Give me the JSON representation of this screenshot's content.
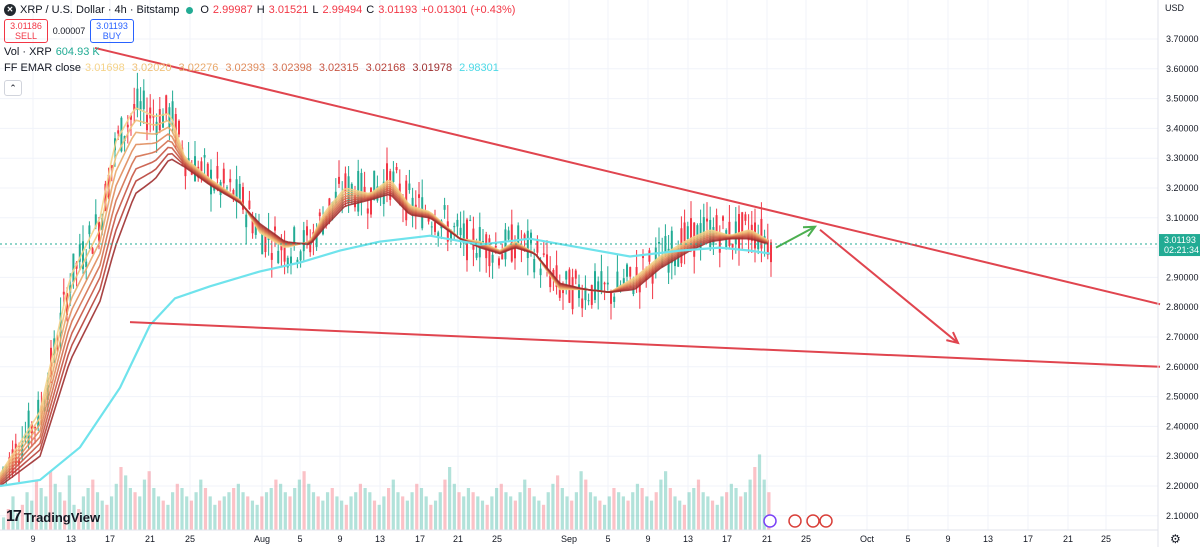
{
  "header": {
    "symbol_icon": "x-icon",
    "title": "XRP / U.S. Dollar · 4h · Bitstamp",
    "ohlc": [
      {
        "label": "O",
        "value": "2.99987"
      },
      {
        "label": "H",
        "value": "3.01521"
      },
      {
        "label": "L",
        "value": "2.99494"
      },
      {
        "label": "C",
        "value": "3.01193"
      }
    ],
    "change": "+0.01301 (+0.43%)",
    "sell_price": "3.01186",
    "sell_label": "SELL",
    "spread": "0.00007",
    "buy_price": "3.01193",
    "buy_label": "BUY",
    "volume_label": "Vol · XRP",
    "volume_value": "604.93 K",
    "ema_label": "FF EMAR close",
    "ema_values": [
      "3.01698",
      "3.02020",
      "3.02276",
      "3.02393",
      "3.02398",
      "3.02315",
      "3.02168",
      "3.01978",
      "2.98301"
    ],
    "ema_colors": [
      "#f5d38a",
      "#f0c27a",
      "#e9a86a",
      "#e08c5c",
      "#d4704f",
      "#c85644",
      "#b8423a",
      "#9e2f2f",
      "#4dd9e6"
    ],
    "collapse_icon": "chevron-up-icon"
  },
  "price_axis": {
    "currency": "USD",
    "labels": [
      "3.70000",
      "3.60000",
      "3.50000",
      "3.40000",
      "3.30000",
      "3.20000",
      "3.10000",
      "2.90000",
      "2.80000",
      "2.70000",
      "2.60000",
      "2.50000",
      "2.40000",
      "2.30000",
      "2.20000",
      "2.10000"
    ],
    "current_price": "3.01193",
    "countdown": "02:21:34"
  },
  "time_axis": {
    "labels": [
      "9",
      "13",
      "17",
      "21",
      "25",
      "Aug",
      "5",
      "9",
      "13",
      "17",
      "21",
      "25",
      "Sep",
      "5",
      "9",
      "13",
      "17",
      "21",
      "25",
      "Oct",
      "5",
      "9",
      "13",
      "17",
      "21",
      "25"
    ]
  },
  "logo_text": "TradingView",
  "colors": {
    "up": "#22ab94",
    "down": "#f23645",
    "trendline": "#e0454f",
    "arrow_down": "#e0454f",
    "arrow_up": "#4caf50",
    "long_ema": "#6fe3ec"
  },
  "chart_data": {
    "type": "line",
    "x_axis": "date (4h candles, Jul–Oct)",
    "ylim": [
      2.06,
      3.76
    ],
    "ema_fast": [
      [
        0,
        2.24
      ],
      [
        40,
        2.45
      ],
      [
        70,
        2.9
      ],
      [
        100,
        3.1
      ],
      [
        115,
        3.35
      ],
      [
        135,
        3.47
      ],
      [
        155,
        3.44
      ],
      [
        170,
        3.45
      ],
      [
        185,
        3.3
      ],
      [
        210,
        3.23
      ],
      [
        240,
        3.16
      ],
      [
        260,
        3.05
      ],
      [
        285,
        3.0
      ],
      [
        310,
        3.02
      ],
      [
        325,
        3.12
      ],
      [
        345,
        3.2
      ],
      [
        370,
        3.18
      ],
      [
        390,
        3.23
      ],
      [
        410,
        3.14
      ],
      [
        430,
        3.12
      ],
      [
        460,
        3.03
      ],
      [
        480,
        3.02
      ],
      [
        500,
        2.99
      ],
      [
        515,
        3.02
      ],
      [
        535,
        2.98
      ],
      [
        560,
        2.86
      ],
      [
        585,
        2.86
      ],
      [
        610,
        2.85
      ],
      [
        635,
        2.9
      ],
      [
        660,
        2.97
      ],
      [
        690,
        3.03
      ],
      [
        710,
        3.06
      ],
      [
        730,
        3.04
      ],
      [
        750,
        3.06
      ],
      [
        770,
        3.02
      ]
    ],
    "ema_slow": [
      [
        0,
        2.2
      ],
      [
        40,
        2.3
      ],
      [
        70,
        2.62
      ],
      [
        100,
        2.82
      ],
      [
        115,
        3.0
      ],
      [
        135,
        3.18
      ],
      [
        155,
        3.23
      ],
      [
        170,
        3.3
      ],
      [
        185,
        3.27
      ],
      [
        210,
        3.21
      ],
      [
        240,
        3.15
      ],
      [
        260,
        3.08
      ],
      [
        285,
        3.02
      ],
      [
        310,
        3.01
      ],
      [
        325,
        3.07
      ],
      [
        345,
        3.14
      ],
      [
        370,
        3.16
      ],
      [
        390,
        3.18
      ],
      [
        410,
        3.11
      ],
      [
        430,
        3.1
      ],
      [
        460,
        3.03
      ],
      [
        480,
        3.0
      ],
      [
        500,
        2.98
      ],
      [
        515,
        3.0
      ],
      [
        535,
        2.98
      ],
      [
        560,
        2.88
      ],
      [
        585,
        2.86
      ],
      [
        610,
        2.85
      ],
      [
        635,
        2.86
      ],
      [
        660,
        2.93
      ],
      [
        690,
        2.99
      ],
      [
        710,
        3.02
      ],
      [
        730,
        3.03
      ],
      [
        750,
        3.03
      ],
      [
        770,
        3.01
      ]
    ],
    "ema_long": [
      [
        0,
        2.2
      ],
      [
        40,
        2.22
      ],
      [
        80,
        2.33
      ],
      [
        120,
        2.53
      ],
      [
        150,
        2.74
      ],
      [
        175,
        2.83
      ],
      [
        210,
        2.87
      ],
      [
        260,
        2.92
      ],
      [
        300,
        2.95
      ],
      [
        340,
        2.99
      ],
      [
        380,
        3.02
      ],
      [
        430,
        3.04
      ],
      [
        480,
        3.01
      ],
      [
        530,
        3.03
      ],
      [
        580,
        3.0
      ],
      [
        630,
        2.97
      ],
      [
        680,
        2.99
      ],
      [
        720,
        3.0
      ],
      [
        750,
        2.99
      ],
      [
        770,
        2.98
      ]
    ],
    "trendline_upper": [
      [
        95,
        3.67
      ],
      [
        1160,
        2.81
      ]
    ],
    "trendline_lower": [
      [
        130,
        2.75
      ],
      [
        1160,
        2.6
      ]
    ],
    "projection_up": [
      [
        776,
        3.0
      ],
      [
        815,
        3.07
      ]
    ],
    "projection_down": [
      [
        820,
        3.06
      ],
      [
        958,
        2.68
      ]
    ],
    "volume_bars": [
      3,
      5,
      8,
      4,
      6,
      9,
      7,
      12,
      10,
      8,
      14,
      11,
      9,
      7,
      13,
      6,
      5,
      8,
      10,
      12,
      9,
      7,
      6,
      8,
      11,
      15,
      13,
      10,
      9,
      8,
      12,
      14,
      10,
      8,
      7,
      6,
      9,
      11,
      10,
      8,
      7,
      9,
      12,
      10,
      8,
      6,
      7,
      8,
      9,
      10,
      11,
      9,
      8,
      7,
      6,
      8,
      9,
      10,
      12,
      11,
      9,
      8,
      10,
      12,
      14,
      11,
      9,
      8,
      7,
      9,
      10,
      8,
      7,
      6,
      8,
      9,
      11,
      10,
      9,
      7,
      6,
      8,
      10,
      12,
      9,
      8,
      7,
      9,
      11,
      10,
      8,
      6,
      7,
      9,
      12,
      15,
      11,
      9,
      8,
      10,
      9,
      8,
      7,
      6,
      8,
      10,
      11,
      9,
      8,
      7,
      9,
      12,
      10,
      8,
      7,
      6,
      9,
      11,
      13,
      10,
      8,
      7,
      9,
      14,
      12,
      9,
      8,
      7,
      6,
      8,
      10,
      9,
      8,
      7,
      9,
      11,
      10,
      8,
      7,
      9,
      12,
      14,
      10,
      8,
      7,
      6,
      9,
      10,
      12,
      9,
      8,
      7,
      6,
      8,
      9,
      11,
      10,
      8,
      9,
      12,
      15,
      18,
      12,
      9
    ]
  }
}
